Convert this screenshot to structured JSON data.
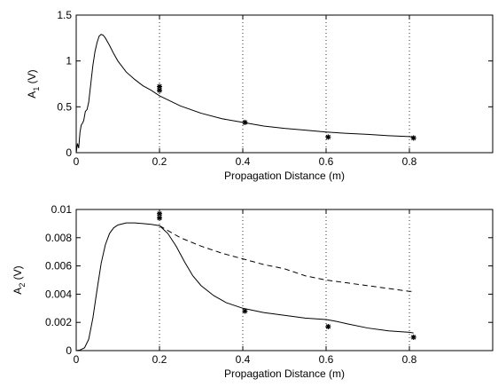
{
  "chart_data": [
    {
      "type": "line",
      "title": "",
      "xlabel": "Propagation Distance (m)",
      "ylabel": "A",
      "ylabel_subscript": "1",
      "ylabel_unit": " (V)",
      "xlim": [
        0,
        1.0
      ],
      "ylim": [
        0,
        1.5
      ],
      "xticks": [
        0,
        0.2,
        0.4,
        0.6,
        0.8
      ],
      "xtick_labels": [
        "0",
        "0.2",
        "0.4",
        "0.6",
        "0.8"
      ],
      "yticks": [
        0,
        0.5,
        1,
        1.5
      ],
      "ytick_labels": [
        "0",
        "0.5",
        "1",
        "1.5"
      ],
      "grid_x_dotted": [
        0.2,
        0.4,
        0.6,
        0.8
      ],
      "series": [
        {
          "style": "solid",
          "x": [
            0.0,
            0.003,
            0.006,
            0.009,
            0.012,
            0.015,
            0.018,
            0.022,
            0.026,
            0.03,
            0.035,
            0.04,
            0.045,
            0.05,
            0.055,
            0.06,
            0.065,
            0.07,
            0.08,
            0.09,
            0.1,
            0.12,
            0.14,
            0.16,
            0.18,
            0.2,
            0.25,
            0.3,
            0.35,
            0.4,
            0.45,
            0.5,
            0.55,
            0.6,
            0.65,
            0.7,
            0.75,
            0.8,
            0.81
          ],
          "y": [
            0.0,
            0.1,
            0.05,
            0.22,
            0.3,
            0.32,
            0.35,
            0.45,
            0.47,
            0.55,
            0.75,
            0.95,
            1.1,
            1.2,
            1.27,
            1.29,
            1.28,
            1.25,
            1.17,
            1.08,
            1.0,
            0.88,
            0.8,
            0.73,
            0.68,
            0.62,
            0.51,
            0.43,
            0.37,
            0.33,
            0.29,
            0.265,
            0.245,
            0.225,
            0.21,
            0.2,
            0.185,
            0.175,
            0.17
          ]
        },
        {
          "style": "markers",
          "x": [
            0.2,
            0.2,
            0.405,
            0.605,
            0.81
          ],
          "y": [
            0.72,
            0.68,
            0.33,
            0.17,
            0.16
          ]
        }
      ]
    },
    {
      "type": "line",
      "title": "",
      "xlabel": "Propagation Distance (m)",
      "ylabel": "A",
      "ylabel_subscript": "2",
      "ylabel_unit": " (V)",
      "xlim": [
        0,
        1.0
      ],
      "ylim": [
        0,
        0.01
      ],
      "xticks": [
        0,
        0.2,
        0.4,
        0.6,
        0.8
      ],
      "xtick_labels": [
        "0",
        "0.2",
        "0.4",
        "0.6",
        "0.8"
      ],
      "yticks": [
        0,
        0.002,
        0.004,
        0.006,
        0.008,
        0.01
      ],
      "ytick_labels": [
        "0",
        "0.002",
        "0.004",
        "0.006",
        "0.008",
        "0.01"
      ],
      "grid_x_dotted": [
        0.2,
        0.4,
        0.6,
        0.8
      ],
      "series": [
        {
          "style": "solid",
          "x": [
            0.0,
            0.01,
            0.02,
            0.03,
            0.04,
            0.05,
            0.06,
            0.07,
            0.08,
            0.09,
            0.1,
            0.12,
            0.14,
            0.16,
            0.18,
            0.2,
            0.22,
            0.24,
            0.26,
            0.28,
            0.3,
            0.33,
            0.36,
            0.4,
            0.45,
            0.5,
            0.55,
            0.6,
            0.62,
            0.65,
            0.7,
            0.75,
            0.8,
            0.81
          ],
          "y": [
            0.0,
            5e-05,
            0.0002,
            0.0008,
            0.0023,
            0.0043,
            0.0062,
            0.0075,
            0.0083,
            0.0087,
            0.0089,
            0.00905,
            0.00905,
            0.009,
            0.00895,
            0.00885,
            0.0083,
            0.0074,
            0.0063,
            0.0053,
            0.0046,
            0.0039,
            0.0034,
            0.003,
            0.0027,
            0.0025,
            0.0023,
            0.0022,
            0.0021,
            0.0019,
            0.0016,
            0.0014,
            0.0013,
            0.00125
          ]
        },
        {
          "style": "dashed",
          "x": [
            0.2,
            0.25,
            0.3,
            0.35,
            0.4,
            0.45,
            0.5,
            0.55,
            0.6,
            0.65,
            0.7,
            0.75,
            0.8,
            0.81
          ],
          "y": [
            0.00885,
            0.008,
            0.0074,
            0.0069,
            0.0065,
            0.0061,
            0.0058,
            0.0053,
            0.005,
            0.0048,
            0.0046,
            0.0044,
            0.0042,
            0.0042
          ]
        },
        {
          "style": "markers",
          "x": [
            0.2,
            0.2,
            0.405,
            0.605,
            0.81
          ],
          "y": [
            0.0097,
            0.0094,
            0.0028,
            0.0017,
            0.00095
          ]
        }
      ]
    }
  ]
}
